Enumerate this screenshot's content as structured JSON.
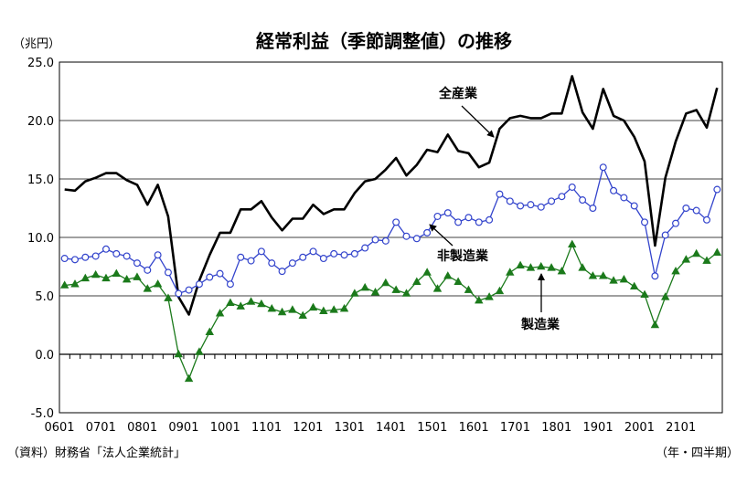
{
  "chart_data": {
    "type": "line",
    "title": "経常利益（季節調整値）の推移",
    "unit_label": "（兆円）",
    "source_label": "（資料）財務省「法人企業統計」",
    "period_label": "（年・四半期）",
    "ylim": [
      -5.0,
      25.0
    ],
    "ytick_labels": [
      "25.0",
      "20.0",
      "15.0",
      "10.0",
      "5.0",
      "0.0",
      "-5.0"
    ],
    "ytick_values": [
      25,
      20,
      15,
      10,
      5,
      0,
      -5
    ],
    "x_tick_labels": [
      "0601",
      "0701",
      "0801",
      "0901",
      "1001",
      "1101",
      "1201",
      "1301",
      "1401",
      "1501",
      "1601",
      "1701",
      "1801",
      "1901",
      "2001",
      "2101"
    ],
    "grid": true,
    "series": [
      {
        "name": "全産業",
        "color": "#000000",
        "marker": "none",
        "values": [
          14.1,
          14.0,
          14.8,
          15.1,
          15.5,
          15.5,
          14.9,
          14.5,
          12.8,
          14.5,
          11.8,
          4.9,
          3.4,
          6.3,
          8.5,
          10.4,
          10.4,
          12.4,
          12.4,
          13.1,
          11.7,
          10.6,
          11.6,
          11.6,
          12.8,
          12.0,
          12.4,
          12.4,
          13.8,
          14.8,
          15.0,
          15.8,
          16.8,
          15.3,
          16.2,
          17.5,
          17.3,
          18.8,
          17.4,
          17.2,
          16.0,
          16.4,
          19.3,
          20.2,
          20.4,
          20.2,
          20.2,
          20.6,
          20.6,
          23.8,
          20.7,
          19.3,
          22.7,
          20.4,
          20.0,
          18.6,
          16.5,
          9.3,
          15.1,
          18.2,
          20.6,
          20.9,
          19.4,
          22.8
        ]
      },
      {
        "name": "非製造業",
        "color": "#3344cc",
        "marker": "circle",
        "values": [
          8.2,
          8.1,
          8.3,
          8.4,
          9.0,
          8.6,
          8.4,
          7.8,
          7.2,
          8.5,
          7.0,
          5.2,
          5.5,
          6.0,
          6.6,
          6.9,
          6.0,
          8.3,
          8.0,
          8.8,
          7.8,
          7.1,
          7.8,
          8.3,
          8.8,
          8.2,
          8.6,
          8.5,
          8.6,
          9.1,
          9.8,
          9.7,
          11.3,
          10.1,
          9.9,
          10.4,
          11.8,
          12.1,
          11.3,
          11.7,
          11.3,
          11.5,
          13.7,
          13.1,
          12.7,
          12.8,
          12.6,
          13.1,
          13.5,
          14.3,
          13.2,
          12.5,
          16.0,
          14.0,
          13.4,
          12.7,
          11.3,
          6.7,
          10.2,
          11.2,
          12.5,
          12.3,
          11.5,
          14.1
        ]
      },
      {
        "name": "製造業",
        "color": "#1b7a1b",
        "marker": "triangle",
        "values": [
          5.9,
          6.0,
          6.5,
          6.8,
          6.5,
          6.9,
          6.4,
          6.6,
          5.6,
          6.0,
          4.8,
          0.0,
          -2.1,
          0.2,
          1.9,
          3.5,
          4.4,
          4.1,
          4.5,
          4.3,
          3.9,
          3.6,
          3.8,
          3.3,
          4.0,
          3.7,
          3.8,
          3.9,
          5.2,
          5.7,
          5.3,
          6.1,
          5.5,
          5.2,
          6.2,
          7.0,
          5.6,
          6.7,
          6.2,
          5.5,
          4.6,
          4.9,
          5.4,
          7.0,
          7.6,
          7.4,
          7.5,
          7.4,
          7.1,
          9.4,
          7.4,
          6.7,
          6.7,
          6.3,
          6.4,
          5.8,
          5.1,
          2.5,
          4.9,
          7.1,
          8.1,
          8.6,
          8.0,
          8.7
        ]
      }
    ],
    "annotations": [
      {
        "text": "全産業",
        "series": "全産業"
      },
      {
        "text": "非製造業",
        "series": "非製造業"
      },
      {
        "text": "製造業",
        "series": "製造業"
      }
    ]
  }
}
